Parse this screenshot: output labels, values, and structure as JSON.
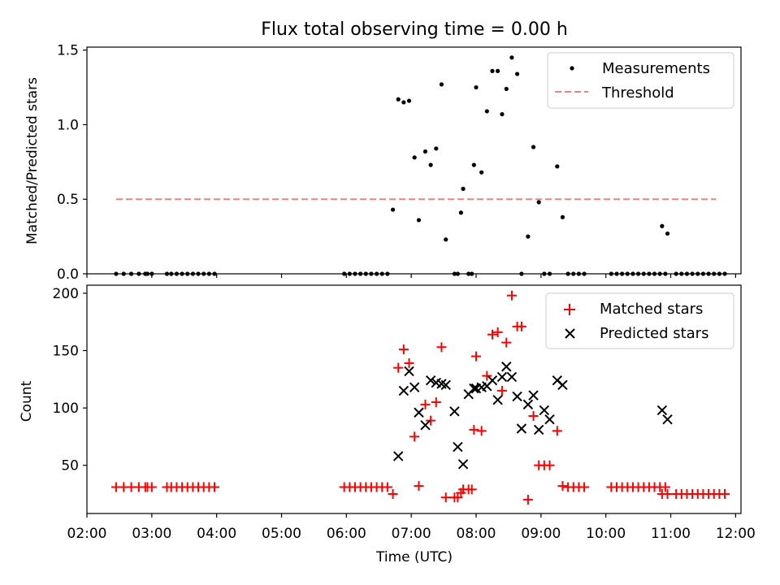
{
  "chart_data": [
    {
      "type": "scatter",
      "title": "Flux total observing time = 0.00 h",
      "xlabel": "",
      "ylabel": "Matched/Predicted stars",
      "xlim": [
        "02:00",
        "12:05"
      ],
      "ylim": [
        0,
        1.52
      ],
      "yticks": [
        "0.0",
        "0.5",
        "1.0",
        "1.5"
      ],
      "legend_position": "top-right",
      "series": [
        {
          "name": "Measurements",
          "kind": "point",
          "color": "#000000",
          "x": [
            "02:27",
            "02:34",
            "02:41",
            "02:48",
            "02:54",
            "02:56",
            "03:00",
            "03:14",
            "03:18",
            "03:23",
            "03:28",
            "03:33",
            "03:38",
            "03:43",
            "03:48",
            "03:53",
            "03:58",
            "05:58",
            "06:03",
            "06:08",
            "06:13",
            "06:18",
            "06:23",
            "06:28",
            "06:33",
            "06:38",
            "06:43",
            "06:48",
            "06:53",
            "06:58",
            "07:03",
            "07:07",
            "07:13",
            "07:18",
            "07:23",
            "07:28",
            "07:32",
            "07:40",
            "07:43",
            "07:46",
            "07:48",
            "07:53",
            "07:56",
            "07:58",
            "08:00",
            "08:05",
            "08:10",
            "08:15",
            "08:20",
            "08:24",
            "08:28",
            "08:33",
            "08:38",
            "08:42",
            "08:48",
            "08:53",
            "08:58",
            "09:03",
            "09:08",
            "09:15",
            "09:20",
            "09:25",
            "09:30",
            "09:35",
            "09:40",
            "10:05",
            "10:10",
            "10:15",
            "10:20",
            "10:25",
            "10:30",
            "10:35",
            "10:40",
            "10:45",
            "10:50",
            "10:55",
            "11:05",
            "11:10",
            "11:15",
            "11:20",
            "11:25",
            "11:30",
            "11:35",
            "11:40",
            "11:45",
            "11:50",
            "10:52",
            "10:57"
          ],
          "y": [
            0,
            0,
            0,
            0,
            0,
            0,
            0,
            0,
            0,
            0,
            0,
            0,
            0,
            0,
            0,
            0,
            0,
            0,
            0,
            0,
            0,
            0,
            0,
            0,
            0,
            0,
            0.43,
            1.17,
            1.15,
            1.16,
            0.78,
            0.36,
            0.82,
            0.73,
            0.84,
            1.27,
            0.23,
            0,
            0,
            0.41,
            0.57,
            0,
            0,
            0.73,
            1.25,
            0.68,
            1.09,
            1.36,
            1.36,
            1.07,
            1.24,
            1.45,
            1.34,
            0,
            0.25,
            0.85,
            0.48,
            0,
            0,
            0.72,
            0.38,
            0,
            0,
            0,
            0,
            0,
            0,
            0,
            0,
            0,
            0,
            0,
            0,
            0,
            0,
            0,
            0,
            0,
            0,
            0,
            0,
            0,
            0,
            0,
            0,
            0,
            0.32,
            0.27
          ]
        },
        {
          "name": "Threshold",
          "kind": "dashed-line",
          "color": "#f08080",
          "x": [
            "02:27",
            "11:42"
          ],
          "y": [
            0.5,
            0.5
          ]
        }
      ]
    },
    {
      "type": "scatter",
      "title": "",
      "xlabel": "Time (UTC)",
      "ylabel": "Count",
      "xlim": [
        "02:00",
        "12:05"
      ],
      "ylim": [
        8,
        207
      ],
      "yticks": [
        "50",
        "100",
        "150",
        "200"
      ],
      "xticks": [
        "02:00",
        "03:00",
        "04:00",
        "05:00",
        "06:00",
        "07:00",
        "08:00",
        "09:00",
        "10:00",
        "11:00",
        "12:00"
      ],
      "legend_position": "top-right",
      "series": [
        {
          "name": "Matched stars",
          "kind": "plus",
          "color": "#ff0000",
          "x": [
            "02:27",
            "02:34",
            "02:41",
            "02:48",
            "02:54",
            "02:56",
            "03:00",
            "03:14",
            "03:18",
            "03:23",
            "03:28",
            "03:33",
            "03:38",
            "03:43",
            "03:48",
            "03:53",
            "03:58",
            "05:58",
            "06:03",
            "06:08",
            "06:13",
            "06:18",
            "06:23",
            "06:28",
            "06:33",
            "06:38",
            "06:43",
            "06:48",
            "06:53",
            "06:58",
            "07:03",
            "07:07",
            "07:13",
            "07:18",
            "07:23",
            "07:28",
            "07:32",
            "07:40",
            "07:43",
            "07:46",
            "07:48",
            "07:53",
            "07:56",
            "07:58",
            "08:00",
            "08:05",
            "08:10",
            "08:15",
            "08:20",
            "08:24",
            "08:28",
            "08:33",
            "08:38",
            "08:42",
            "08:48",
            "08:53",
            "08:58",
            "09:03",
            "09:08",
            "09:15",
            "09:20",
            "09:25",
            "09:30",
            "09:35",
            "09:40",
            "10:05",
            "10:10",
            "10:15",
            "10:20",
            "10:25",
            "10:30",
            "10:35",
            "10:40",
            "10:45",
            "10:50",
            "10:55",
            "11:05",
            "11:10",
            "11:15",
            "11:20",
            "11:25",
            "11:30",
            "11:35",
            "11:40",
            "11:45",
            "11:50",
            "10:52",
            "10:57"
          ],
          "y": [
            31,
            31,
            31,
            31,
            31,
            31,
            31,
            31,
            31,
            31,
            31,
            31,
            31,
            31,
            31,
            31,
            31,
            31,
            31,
            31,
            31,
            31,
            31,
            31,
            31,
            31,
            25,
            135,
            151,
            139,
            75,
            32,
            103,
            89,
            105,
            153,
            22,
            22,
            22,
            26,
            29,
            29,
            29,
            81,
            145,
            80,
            128,
            164,
            166,
            115,
            157,
            198,
            171,
            171,
            20,
            93,
            50,
            50,
            50,
            80,
            32,
            31,
            31,
            31,
            31,
            31,
            31,
            31,
            31,
            31,
            31,
            31,
            31,
            31,
            31,
            31,
            25,
            25,
            25,
            25,
            25,
            25,
            25,
            25,
            25,
            25,
            25,
            25
          ]
        },
        {
          "name": "Predicted stars",
          "kind": "x",
          "color": "#000000",
          "x": [
            "06:48",
            "06:53",
            "06:58",
            "07:03",
            "07:07",
            "07:13",
            "07:18",
            "07:23",
            "07:28",
            "07:32",
            "07:40",
            "07:43",
            "07:48",
            "07:53",
            "07:58",
            "08:00",
            "08:05",
            "08:10",
            "08:15",
            "08:20",
            "08:24",
            "08:28",
            "08:33",
            "08:38",
            "08:42",
            "08:48",
            "08:53",
            "08:58",
            "09:03",
            "09:08",
            "09:15",
            "09:20",
            "10:52",
            "10:57"
          ],
          "y": [
            58,
            115,
            132,
            118,
            96,
            85,
            124,
            122,
            121,
            120,
            97,
            66,
            51,
            112,
            117,
            117,
            118,
            119,
            124,
            107,
            127,
            136,
            127,
            110,
            82,
            103,
            111,
            81,
            98,
            90,
            124,
            120,
            98,
            90
          ]
        }
      ]
    }
  ]
}
